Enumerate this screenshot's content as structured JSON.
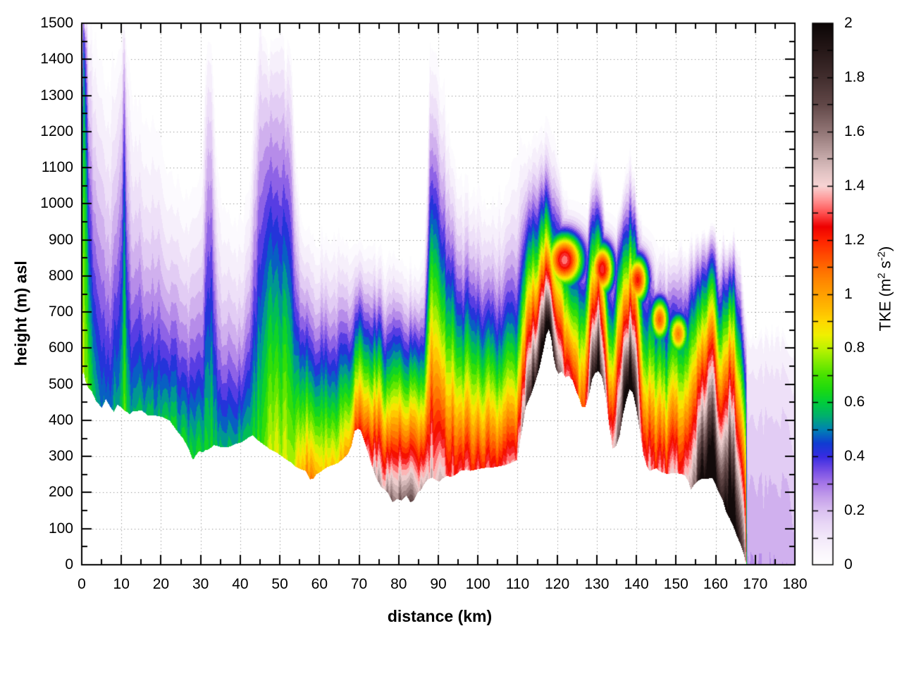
{
  "figure": {
    "type": "filled-contour cross-section",
    "background": "#ffffff"
  },
  "axes": {
    "x": {
      "label": "distance (km)",
      "min": 0,
      "max": 180,
      "major_tick_step": 10,
      "minor_tick_step": 5,
      "tick_labels": [
        "0",
        "10",
        "20",
        "30",
        "40",
        "50",
        "60",
        "70",
        "80",
        "90",
        "100",
        "110",
        "120",
        "130",
        "140",
        "150",
        "160",
        "170",
        "180"
      ]
    },
    "y": {
      "label": "height (m) asl",
      "min": 0,
      "max": 1500,
      "major_tick_step": 100,
      "minor_tick_step": 50,
      "tick_labels": [
        "0",
        "100",
        "200",
        "300",
        "400",
        "500",
        "600",
        "700",
        "800",
        "900",
        "1000",
        "1100",
        "1200",
        "1300",
        "1400",
        "1500"
      ]
    },
    "grid": {
      "style": "dotted",
      "color": "#8c8c8c"
    }
  },
  "colorbar": {
    "min": 0,
    "max": 2,
    "tick_step": 0.1,
    "label_step": 0.2,
    "tick_labels": [
      "0",
      "0.2",
      "0.4",
      "0.6",
      "0.8",
      "1",
      "1.2",
      "1.4",
      "1.6",
      "1.8",
      "2"
    ],
    "label_parts": {
      "pre": "TKE (m",
      "sup1": "2",
      "mid": " s",
      "sup2": "-2",
      "post": ")"
    },
    "palette_stops": [
      [
        0.0,
        "#ffffff"
      ],
      [
        0.05,
        "#faf5fc"
      ],
      [
        0.1,
        "#f3e9fa"
      ],
      [
        0.15,
        "#e9d8f6"
      ],
      [
        0.2,
        "#dbc1f1"
      ],
      [
        0.25,
        "#c5a0ea"
      ],
      [
        0.3,
        "#a778e8"
      ],
      [
        0.35,
        "#764ee4"
      ],
      [
        0.4,
        "#382ce2"
      ],
      [
        0.45,
        "#103cd2"
      ],
      [
        0.5,
        "#0082b4"
      ],
      [
        0.55,
        "#00af6e"
      ],
      [
        0.6,
        "#00cd3c"
      ],
      [
        0.65,
        "#1eda0f"
      ],
      [
        0.7,
        "#46e200"
      ],
      [
        0.75,
        "#82eb00"
      ],
      [
        0.8,
        "#bef200"
      ],
      [
        0.85,
        "#f0f000"
      ],
      [
        0.9,
        "#ffd700"
      ],
      [
        0.95,
        "#ffb900"
      ],
      [
        1.0,
        "#ffa000"
      ],
      [
        1.05,
        "#ff8700"
      ],
      [
        1.1,
        "#ff6900"
      ],
      [
        1.15,
        "#ff4600"
      ],
      [
        1.2,
        "#ff2300"
      ],
      [
        1.25,
        "#ee0000"
      ],
      [
        1.3,
        "#ff5050"
      ],
      [
        1.35,
        "#ff9696"
      ],
      [
        1.4,
        "#f8d4d4"
      ],
      [
        1.45,
        "#e2c4c4"
      ],
      [
        1.5,
        "#c8acac"
      ],
      [
        1.6,
        "#927676"
      ],
      [
        1.7,
        "#624848"
      ],
      [
        1.8,
        "#422e2e"
      ],
      [
        1.9,
        "#261818"
      ],
      [
        2.0,
        "#0c0606"
      ]
    ]
  },
  "chart_data": {
    "type": "heatmap",
    "title": "",
    "xlabel": "distance (km)",
    "ylabel": "height (m) asl",
    "zlabel": "TKE (m2 s-2)",
    "xlim": [
      0,
      180
    ],
    "ylim": [
      0,
      1500
    ],
    "zlim": [
      0,
      2
    ],
    "contour_band_size": 0.05,
    "legend_position": "right-colorbar",
    "grid": "dotted major",
    "field_model": "TKE(x,h) = surface_tke * (1-u)^decay_exponent with u=(h-terrain)/(top-terrain), valid terrain<=h<=top; white below terrain (ground) and above top; plus elevated gaussian maxima (lee-wave rotors); color from palette_stops",
    "profile_columns": [
      "distance_km",
      "terrain_height_m",
      "surface_tke",
      "tke_top_height_m",
      "decay_exponent"
    ],
    "profile": [
      [
        0,
        525,
        0.75,
        1500,
        0.9
      ],
      [
        0.4,
        535,
        0.82,
        1500,
        0.2
      ],
      [
        0.9,
        508,
        0.78,
        1500,
        0.35
      ],
      [
        1.6,
        490,
        0.72,
        1500,
        0.8
      ],
      [
        2.5,
        480,
        0.62,
        1490,
        1.0
      ],
      [
        3.5,
        455,
        0.54,
        1480,
        1.2
      ],
      [
        5,
        435,
        0.51,
        1430,
        1.3
      ],
      [
        6,
        460,
        0.5,
        1390,
        1.3
      ],
      [
        7,
        440,
        0.51,
        1400,
        1.3
      ],
      [
        8,
        425,
        0.53,
        1440,
        1.2
      ],
      [
        9,
        445,
        0.56,
        1450,
        1.1
      ],
      [
        10,
        435,
        0.6,
        1460,
        1.0
      ],
      [
        10.6,
        428,
        0.7,
        1470,
        0.5
      ],
      [
        11.2,
        425,
        0.62,
        1460,
        0.9
      ],
      [
        12,
        418,
        0.56,
        1390,
        1.2
      ],
      [
        13,
        427,
        0.53,
        1360,
        1.5
      ],
      [
        14,
        427,
        0.55,
        1350,
        1.6
      ],
      [
        15,
        429,
        0.55,
        1340,
        1.6
      ],
      [
        16.7,
        414,
        0.56,
        1310,
        1.6
      ],
      [
        18.5,
        414,
        0.56,
        1270,
        1.6
      ],
      [
        20.3,
        410,
        0.57,
        1220,
        1.6
      ],
      [
        22.1,
        400,
        0.58,
        1150,
        1.6
      ],
      [
        23.8,
        374,
        0.6,
        1110,
        1.55
      ],
      [
        25.6,
        349,
        0.61,
        1090,
        1.5
      ],
      [
        26.9,
        322,
        0.62,
        1080,
        1.5
      ],
      [
        28,
        291,
        0.63,
        1080,
        1.5
      ],
      [
        28.6,
        302,
        0.62,
        1090,
        1.5
      ],
      [
        29.5,
        316,
        0.61,
        1110,
        1.5
      ],
      [
        30.4,
        312,
        0.6,
        1220,
        1.35
      ],
      [
        31.1,
        318,
        0.61,
        1420,
        1.0
      ],
      [
        31.8,
        320,
        0.62,
        1450,
        0.85
      ],
      [
        32.6,
        326,
        0.62,
        1440,
        0.95
      ],
      [
        33.3,
        332,
        0.6,
        1330,
        1.2
      ],
      [
        34.2,
        330,
        0.58,
        1160,
        1.4
      ],
      [
        35.1,
        326,
        0.57,
        1060,
        1.5
      ],
      [
        36.8,
        326,
        0.56,
        1010,
        1.5
      ],
      [
        38.6,
        335,
        0.57,
        1000,
        1.5
      ],
      [
        40.4,
        341,
        0.58,
        1020,
        1.5
      ],
      [
        42.2,
        355,
        0.6,
        1070,
        1.45
      ],
      [
        43.1,
        360,
        0.62,
        1220,
        1.25
      ],
      [
        44,
        349,
        0.65,
        1450,
        1.0
      ],
      [
        44.8,
        342,
        0.68,
        1500,
        0.85
      ],
      [
        45.7,
        335,
        0.71,
        1490,
        0.85
      ],
      [
        46.6,
        328,
        0.75,
        1470,
        0.85
      ],
      [
        47.5,
        320,
        0.78,
        1450,
        0.85
      ],
      [
        49.3,
        310,
        0.8,
        1440,
        0.85
      ],
      [
        51.1,
        296,
        0.8,
        1430,
        0.88
      ],
      [
        52.9,
        283,
        0.82,
        1400,
        0.95
      ],
      [
        54,
        272,
        0.88,
        1150,
        1.2
      ],
      [
        55,
        266,
        0.93,
        1020,
        1.3
      ],
      [
        56.4,
        261,
        1.0,
        980,
        1.35
      ],
      [
        57.5,
        237,
        1.1,
        955,
        1.35
      ],
      [
        58.4,
        240,
        1.05,
        945,
        1.35
      ],
      [
        59.2,
        252,
        1.0,
        940,
        1.35
      ],
      [
        60,
        257,
        0.95,
        938,
        1.35
      ],
      [
        61.8,
        271,
        0.93,
        935,
        1.35
      ],
      [
        63.5,
        278,
        0.93,
        932,
        1.35
      ],
      [
        64.7,
        283,
        0.95,
        930,
        1.35
      ],
      [
        66,
        296,
        0.98,
        928,
        1.35
      ],
      [
        67.1,
        308,
        1.03,
        925,
        1.35
      ],
      [
        68,
        330,
        1.09,
        920,
        1.33
      ],
      [
        68.8,
        371,
        1.16,
        915,
        1.32
      ],
      [
        69.6,
        378,
        1.19,
        910,
        1.32
      ],
      [
        70.3,
        373,
        1.21,
        905,
        1.32
      ],
      [
        71.3,
        341,
        1.26,
        900,
        1.33
      ],
      [
        72.2,
        310,
        1.33,
        895,
        1.33
      ],
      [
        73.1,
        277,
        1.41,
        890,
        1.34
      ],
      [
        74.2,
        242,
        1.48,
        885,
        1.34
      ],
      [
        75.4,
        218,
        1.53,
        878,
        1.35
      ],
      [
        76.4,
        208,
        1.56,
        872,
        1.35
      ],
      [
        77.2,
        199,
        1.59,
        866,
        1.35
      ],
      [
        78.4,
        174,
        1.61,
        858,
        1.35
      ],
      [
        79.5,
        183,
        1.59,
        852,
        1.35
      ],
      [
        80.7,
        179,
        1.61,
        848,
        1.35
      ],
      [
        81.9,
        193,
        1.58,
        845,
        1.35
      ],
      [
        82.8,
        174,
        1.61,
        843,
        1.35
      ],
      [
        83.7,
        179,
        1.59,
        843,
        1.35
      ],
      [
        84.6,
        199,
        1.54,
        848,
        1.35
      ],
      [
        85.5,
        208,
        1.49,
        860,
        1.35
      ],
      [
        86.4,
        225,
        1.45,
        900,
        1.35
      ],
      [
        87.2,
        237,
        1.43,
        1150,
        1.36
      ],
      [
        87.8,
        240,
        1.45,
        1470,
        1.36
      ],
      [
        88.4,
        242,
        1.43,
        1490,
        1.36
      ],
      [
        89.2,
        236,
        1.41,
        1440,
        1.36
      ],
      [
        90.1,
        231,
        1.41,
        1430,
        1.38
      ],
      [
        91,
        240,
        1.39,
        1370,
        1.4
      ],
      [
        92,
        247,
        1.37,
        1290,
        1.4
      ],
      [
        93.2,
        244,
        1.35,
        1200,
        1.4
      ],
      [
        94.5,
        252,
        1.33,
        1140,
        1.4
      ],
      [
        95.5,
        261,
        1.31,
        1110,
        1.4
      ],
      [
        97,
        264,
        1.29,
        1085,
        1.4
      ],
      [
        98,
        261,
        1.28,
        1070,
        1.4
      ],
      [
        100,
        266,
        1.27,
        1055,
        1.42
      ],
      [
        102,
        270,
        1.27,
        1045,
        1.45
      ],
      [
        103.9,
        271,
        1.28,
        1040,
        1.5
      ],
      [
        105.5,
        274,
        1.29,
        1060,
        1.55
      ],
      [
        106.9,
        277,
        1.31,
        1100,
        1.65
      ],
      [
        108.3,
        283,
        1.34,
        1180,
        1.8
      ],
      [
        109.8,
        291,
        1.37,
        1230,
        1.9
      ],
      [
        110.8,
        360,
        1.5,
        1240,
        1.8
      ],
      [
        112,
        438,
        1.66,
        1210,
        1.6
      ],
      [
        113.3,
        472,
        1.82,
        1160,
        1.4
      ],
      [
        114.5,
        511,
        1.98,
        1200,
        1.5
      ],
      [
        115.4,
        544,
        2.12,
        1230,
        1.65
      ],
      [
        116.3,
        589,
        2.2,
        1250,
        1.75
      ],
      [
        117.2,
        638,
        2.25,
        1260,
        1.9
      ],
      [
        117.8,
        653,
        2.26,
        1255,
        2.0
      ],
      [
        118.4,
        628,
        2.18,
        1240,
        1.9
      ],
      [
        119,
        575,
        2.0,
        1210,
        1.7
      ],
      [
        119.6,
        544,
        1.8,
        1170,
        1.5
      ],
      [
        120.2,
        530,
        1.63,
        1120,
        1.35
      ],
      [
        121.1,
        536,
        1.5,
        1090,
        1.3
      ],
      [
        122,
        520,
        1.4,
        1060,
        1.3
      ],
      [
        122.9,
        524,
        1.31,
        1020,
        1.2
      ],
      [
        123.8,
        511,
        1.23,
        980,
        1.05
      ],
      [
        124.7,
        482,
        1.15,
        940,
        0.92
      ],
      [
        125.6,
        458,
        1.08,
        905,
        0.85
      ],
      [
        126.1,
        439,
        1.06,
        890,
        0.8
      ],
      [
        127,
        437,
        1.13,
        900,
        0.8
      ],
      [
        127.9,
        468,
        1.5,
        1000,
        0.9
      ],
      [
        128.8,
        517,
        1.9,
        1090,
        1.1
      ],
      [
        129.6,
        533,
        2.1,
        1130,
        1.3
      ],
      [
        130.3,
        537,
        2.05,
        1120,
        1.3
      ],
      [
        131.2,
        522,
        1.78,
        1060,
        1.15
      ],
      [
        132.1,
        470,
        1.48,
        980,
        1.0
      ],
      [
        133,
        390,
        1.32,
        920,
        1.0
      ],
      [
        133.9,
        322,
        1.36,
        900,
        1.02
      ],
      [
        134.8,
        330,
        1.52,
        940,
        1.0
      ],
      [
        135.7,
        360,
        1.77,
        1000,
        0.95
      ],
      [
        136.6,
        420,
        2.02,
        1090,
        1.1
      ],
      [
        137.5,
        462,
        2.2,
        1140,
        1.3
      ],
      [
        138.2,
        487,
        2.22,
        1150,
        1.35
      ],
      [
        139,
        478,
        2.06,
        1120,
        1.25
      ],
      [
        139.9,
        432,
        1.78,
        1050,
        1.1
      ],
      [
        140.8,
        370,
        1.5,
        960,
        1.0
      ],
      [
        141.7,
        305,
        1.34,
        910,
        1.02
      ],
      [
        142.6,
        272,
        1.37,
        900,
        1.02
      ],
      [
        143.3,
        260,
        1.47,
        910,
        0.98
      ],
      [
        144.1,
        265,
        1.34,
        885,
        1.03
      ],
      [
        145,
        268,
        1.27,
        870,
        1.06
      ],
      [
        146,
        258,
        1.37,
        885,
        1.03
      ],
      [
        146.8,
        256,
        1.3,
        872,
        1.06
      ],
      [
        147.7,
        252,
        1.27,
        865,
        1.06
      ],
      [
        148.6,
        254,
        1.32,
        870,
        1.05
      ],
      [
        149.5,
        255,
        1.37,
        876,
        1.03
      ],
      [
        150.4,
        254,
        1.32,
        872,
        1.05
      ],
      [
        151.3,
        252,
        1.4,
        884,
        1.0
      ],
      [
        152.2,
        248,
        1.47,
        895,
        0.97
      ],
      [
        153.1,
        230,
        1.42,
        885,
        1.0
      ],
      [
        153.7,
        209,
        1.47,
        888,
        1.0
      ],
      [
        154.4,
        222,
        1.62,
        908,
        0.95
      ],
      [
        155.3,
        232,
        1.77,
        918,
        0.92
      ],
      [
        156.2,
        238,
        1.92,
        922,
        0.9
      ],
      [
        157.3,
        238,
        2.06,
        922,
        0.9
      ],
      [
        158.2,
        240,
        2.11,
        926,
        0.9
      ],
      [
        159.1,
        242,
        2.16,
        932,
        0.92
      ],
      [
        160,
        220,
        2.06,
        918,
        0.94
      ],
      [
        160.8,
        199,
        1.96,
        904,
        0.96
      ],
      [
        161.7,
        180,
        2.01,
        908,
        0.96
      ],
      [
        162.6,
        146,
        2.11,
        918,
        0.94
      ],
      [
        163.5,
        128,
        2.16,
        932,
        0.92
      ],
      [
        164.4,
        107,
        2.11,
        922,
        0.92
      ],
      [
        165.3,
        80,
        2.01,
        892,
        0.96
      ],
      [
        166.2,
        57,
        1.91,
        842,
        1.0
      ],
      [
        167,
        30,
        1.76,
        782,
        1.05
      ],
      [
        167.5,
        8,
        1.5,
        722,
        1.1
      ],
      [
        167.8,
        0,
        0.26,
        662,
        0.55
      ],
      [
        169,
        0,
        0.25,
        652,
        0.5
      ],
      [
        172,
        0,
        0.24,
        642,
        0.5
      ],
      [
        176,
        0,
        0.235,
        632,
        0.5
      ],
      [
        180,
        0,
        0.23,
        627,
        0.5
      ]
    ],
    "elevated_maxima_columns": {
      "kc": "center_km",
      "kw": "halfwidth_km",
      "hc": "center_height_m",
      "hs": "height_sigma_m",
      "a": "peak_tke"
    },
    "elevated_maxima": [
      {
        "kc": 121.8,
        "kw": 5.0,
        "hc": 845,
        "hs": 78,
        "a": 1.33
      },
      {
        "kc": 131.3,
        "kw": 3.2,
        "hc": 820,
        "hs": 75,
        "a": 1.28
      },
      {
        "kc": 140.2,
        "kw": 3.0,
        "hc": 790,
        "hs": 72,
        "a": 1.22
      },
      {
        "kc": 145.8,
        "kw": 2.6,
        "hc": 680,
        "hs": 65,
        "a": 1.12
      },
      {
        "kc": 150.5,
        "kw": 2.8,
        "hc": 640,
        "hs": 62,
        "a": 1.06
      }
    ]
  }
}
